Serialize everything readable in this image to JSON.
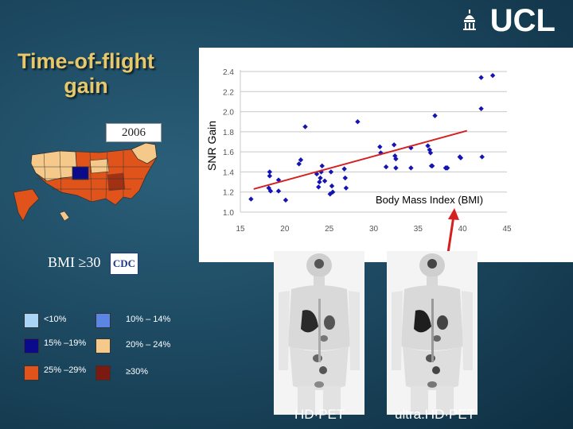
{
  "title": "Time-of-flight gain",
  "logo": {
    "text": "UCL"
  },
  "map": {
    "year": "2006",
    "caption": "BMI ≥30",
    "source_logo": "CDC"
  },
  "legend": [
    {
      "label": "<10%",
      "color": "#a9d4f5"
    },
    {
      "label": "10% – 14%",
      "color": "#5b86e6"
    },
    {
      "label": "15% –19%",
      "color": "#0a0a8a"
    },
    {
      "label": "20% – 24%",
      "color": "#f5c98a"
    },
    {
      "label": "25% –29%",
      "color": "#e0541c"
    },
    {
      "label": "≥30%",
      "color": "#7a1a10"
    }
  ],
  "pet": {
    "left_label": "HD·PET",
    "right_label": "ultra.HD·PET"
  },
  "chart_data": {
    "type": "scatter",
    "xlabel": "Body Mass Index (BMI)",
    "ylabel": "SNR Gain",
    "xlim": [
      15,
      45
    ],
    "ylim": [
      1.0,
      2.4
    ],
    "xticks": [
      "15",
      "20",
      "25",
      "30",
      "35",
      "40",
      "45"
    ],
    "yticks": [
      "1.0",
      "1.2",
      "1.4",
      "1.6",
      "1.8",
      "2.0",
      "2.2",
      "2.4"
    ],
    "grid": "horizontal",
    "marker_color": "#1414b4",
    "trend_color": "#d42020",
    "trend": {
      "x": [
        16.5,
        40.5
      ],
      "y": [
        1.23,
        1.81
      ]
    },
    "arrow_color": "#d42020",
    "points": [
      [
        16.2,
        1.13
      ],
      [
        18.3,
        1.4
      ],
      [
        18.3,
        1.36
      ],
      [
        18.2,
        1.24
      ],
      [
        18.4,
        1.21
      ],
      [
        19.3,
        1.32
      ],
      [
        19.3,
        1.21
      ],
      [
        20.1,
        1.12
      ],
      [
        21.6,
        1.48
      ],
      [
        21.8,
        1.52
      ],
      [
        22.3,
        1.85
      ],
      [
        23.6,
        1.38
      ],
      [
        24.0,
        1.34
      ],
      [
        23.9,
        1.3
      ],
      [
        23.8,
        1.25
      ],
      [
        24.1,
        1.4
      ],
      [
        24.2,
        1.46
      ],
      [
        24.5,
        1.31
      ],
      [
        25.2,
        1.4
      ],
      [
        25.3,
        1.26
      ],
      [
        25.1,
        1.18
      ],
      [
        25.4,
        1.2
      ],
      [
        26.7,
        1.43
      ],
      [
        26.8,
        1.34
      ],
      [
        26.9,
        1.24
      ],
      [
        28.2,
        1.9
      ],
      [
        30.7,
        1.65
      ],
      [
        30.8,
        1.59
      ],
      [
        31.4,
        1.45
      ],
      [
        32.3,
        1.67
      ],
      [
        32.4,
        1.56
      ],
      [
        32.5,
        1.53
      ],
      [
        32.5,
        1.44
      ],
      [
        34.2,
        1.64
      ],
      [
        34.2,
        1.44
      ],
      [
        36.1,
        1.66
      ],
      [
        36.3,
        1.62
      ],
      [
        36.4,
        1.59
      ],
      [
        36.5,
        1.46
      ],
      [
        36.6,
        1.46
      ],
      [
        36.9,
        1.96
      ],
      [
        38.1,
        1.44
      ],
      [
        38.2,
        1.44
      ],
      [
        38.3,
        1.44
      ],
      [
        39.7,
        1.55
      ],
      [
        39.8,
        1.54
      ],
      [
        42.1,
        2.34
      ],
      [
        42.1,
        2.03
      ],
      [
        42.2,
        1.55
      ],
      [
        43.4,
        2.36
      ]
    ]
  }
}
